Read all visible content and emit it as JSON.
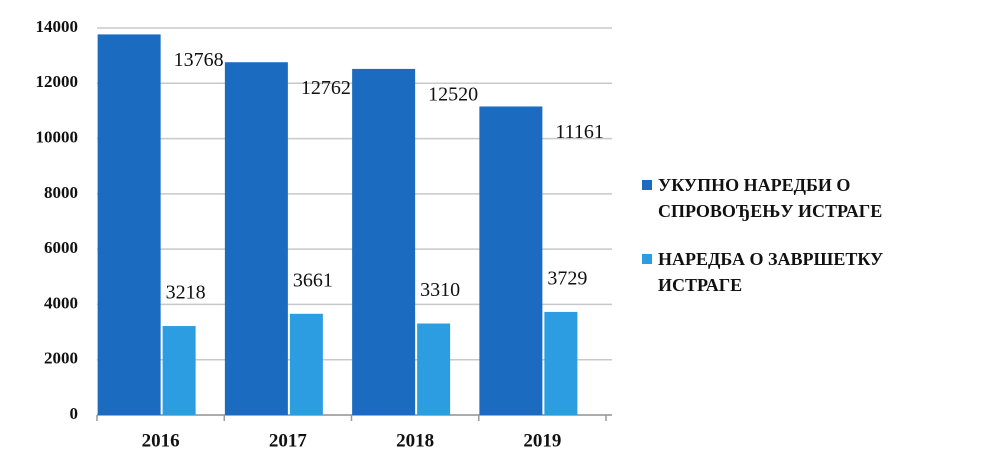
{
  "chart_data": {
    "type": "bar",
    "categories": [
      "2016",
      "2017",
      "2018",
      "2019"
    ],
    "series": [
      {
        "name": "УКУПНО НАРЕДБИ О СПРОВОЂЕЊУ ИСТРАГЕ",
        "color": "#1b6cc0",
        "values": [
          13768,
          12762,
          12520,
          11161
        ]
      },
      {
        "name": "НАРЕДБА О ЗАВРШЕТКУ ИСТРАГЕ",
        "color": "#2b9de0",
        "values": [
          3218,
          3661,
          3310,
          3729
        ]
      }
    ],
    "ylim": [
      0,
      14000
    ],
    "yticks": [
      0,
      2000,
      4000,
      6000,
      8000,
      10000,
      12000,
      14000
    ],
    "grid": true,
    "legend": "right"
  }
}
